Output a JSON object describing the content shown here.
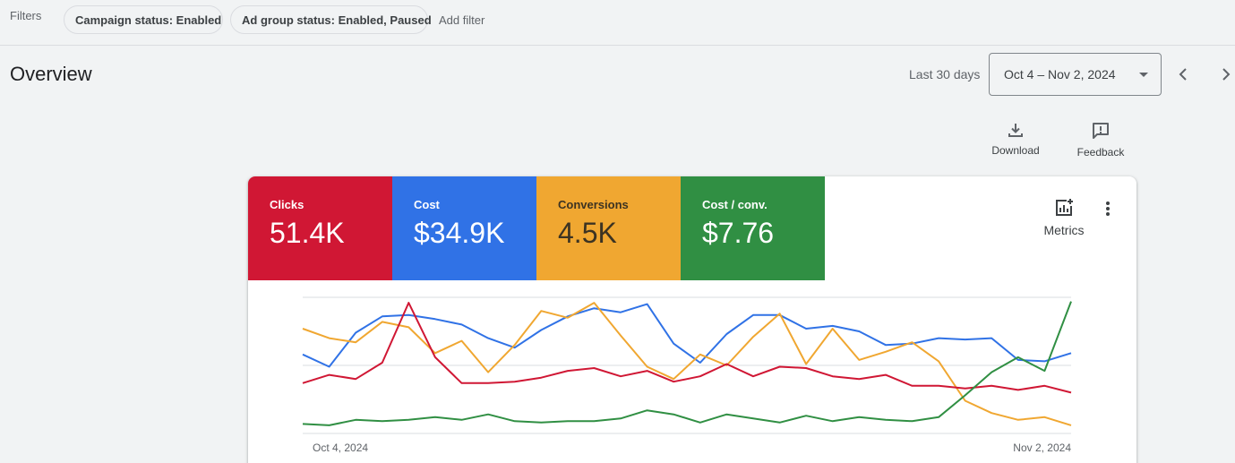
{
  "filters": {
    "label": "Filters",
    "chips": [
      "Campaign status: Enabled",
      "Ad group status: Enabled, Paused"
    ],
    "add_filter": "Add filter"
  },
  "overview": {
    "title": "Overview",
    "range_label": "Last 30 days",
    "date_range": "Oct 4 – Nov 2, 2024"
  },
  "actions": {
    "download": "Download",
    "feedback": "Feedback"
  },
  "scorecards": {
    "clicks": {
      "label": "Clicks",
      "value": "51.4K",
      "color": "#d01734"
    },
    "cost": {
      "label": "Cost",
      "value": "$34.9K",
      "color": "#3072e6"
    },
    "conversions": {
      "label": "Conversions",
      "value": "4.5K",
      "color": "#f0a731"
    },
    "cost_per_conv": {
      "label": "Cost / conv.",
      "value": "$7.76",
      "color": "#308f43"
    }
  },
  "metrics_button": "Metrics",
  "icons": [
    "download-icon",
    "feedback-icon",
    "chevron-left-icon",
    "chevron-right-icon",
    "add-chart-icon",
    "more-vert-icon",
    "dropdown-caret-icon"
  ],
  "chart_data": {
    "type": "line",
    "x_start": "Oct 4, 2024",
    "x_end": "Nov 2, 2024",
    "grid": true,
    "series": [
      {
        "key": "cost",
        "color": "#3072e6",
        "values": [
          0.58,
          0.49,
          0.74,
          0.86,
          0.87,
          0.84,
          0.8,
          0.7,
          0.63,
          0.76,
          0.86,
          0.92,
          0.89,
          0.95,
          0.66,
          0.52,
          0.73,
          0.87,
          0.87,
          0.77,
          0.79,
          0.75,
          0.65,
          0.66,
          0.7,
          0.69,
          0.7,
          0.54,
          0.53,
          0.59
        ]
      },
      {
        "key": "conversions",
        "color": "#f0a731",
        "values": [
          0.77,
          0.7,
          0.67,
          0.82,
          0.78,
          0.59,
          0.68,
          0.45,
          0.65,
          0.9,
          0.85,
          0.96,
          0.72,
          0.49,
          0.4,
          0.58,
          0.5,
          0.71,
          0.88,
          0.51,
          0.77,
          0.54,
          0.6,
          0.67,
          0.53,
          0.24,
          0.15,
          0.1,
          0.12,
          0.06
        ]
      },
      {
        "key": "clicks",
        "color": "#d01734",
        "values": [
          0.37,
          0.43,
          0.4,
          0.52,
          0.96,
          0.56,
          0.37,
          0.37,
          0.38,
          0.41,
          0.46,
          0.48,
          0.42,
          0.46,
          0.38,
          0.42,
          0.51,
          0.42,
          0.49,
          0.48,
          0.42,
          0.4,
          0.43,
          0.35,
          0.35,
          0.33,
          0.35,
          0.32,
          0.35,
          0.3
        ]
      },
      {
        "key": "cost_per_conv",
        "color": "#308f43",
        "values": [
          0.07,
          0.06,
          0.1,
          0.09,
          0.1,
          0.12,
          0.1,
          0.14,
          0.09,
          0.08,
          0.09,
          0.09,
          0.11,
          0.17,
          0.14,
          0.08,
          0.14,
          0.11,
          0.08,
          0.13,
          0.09,
          0.12,
          0.1,
          0.09,
          0.12,
          0.28,
          0.45,
          0.56,
          0.46,
          0.97
        ]
      }
    ]
  }
}
